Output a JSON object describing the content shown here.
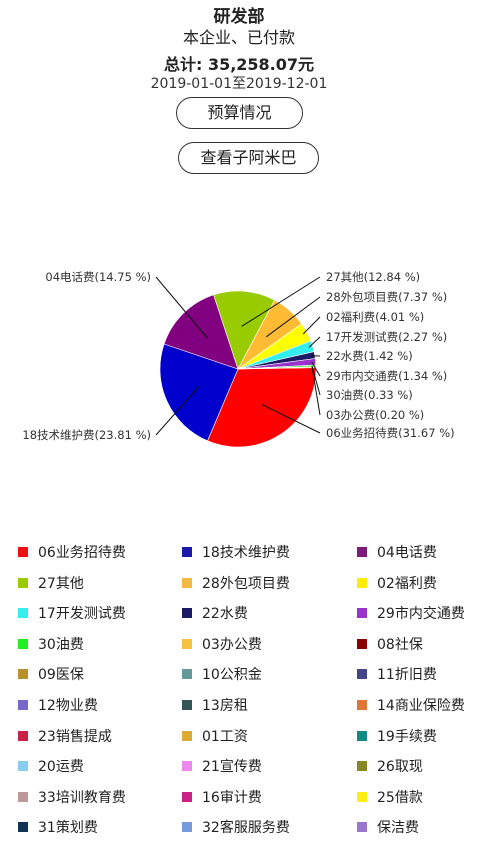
{
  "header": {
    "dept": "研发部",
    "scope": "本企业、已付款",
    "total": "总计: 35,258.07元",
    "range": "2019-01-01至2019-12-01"
  },
  "buttons": {
    "budget": "预算情况",
    "view_sub": "查看子阿米巴"
  },
  "chart_data": {
    "type": "pie",
    "slices": [
      {
        "name": "06业务招待费",
        "value": 31.67,
        "label": "06业务招待费(31.67 %)",
        "color": "#ff0000"
      },
      {
        "name": "18技术维护费",
        "value": 23.81,
        "label": "18技术维护费(23.81 %)",
        "color": "#0000cc"
      },
      {
        "name": "04电话费",
        "value": 14.75,
        "label": "04电话费(14.75 %)",
        "color": "#800080"
      },
      {
        "name": "27其他",
        "value": 12.84,
        "label": "27其他(12.84 %)",
        "color": "#99cc00"
      },
      {
        "name": "28外包项目费",
        "value": 7.37,
        "label": "28外包项目费(7.37 %)",
        "color": "#ffbb33"
      },
      {
        "name": "02福利费",
        "value": 4.01,
        "label": "02福利费(4.01 %)",
        "color": "#ffff00"
      },
      {
        "name": "17开发测试费",
        "value": 2.27,
        "label": "17开发测试费(2.27 %)",
        "color": "#33eeee"
      },
      {
        "name": "22水费",
        "value": 1.42,
        "label": "22水费(1.42 %)",
        "color": "#1a1a66"
      },
      {
        "name": "29市内交通费",
        "value": 1.34,
        "label": "29市内交通费(1.34 %)",
        "color": "#9933cc"
      },
      {
        "name": "30油费",
        "value": 0.33,
        "label": "30油费(0.33 %)",
        "color": "#22ee22"
      },
      {
        "name": "03办公费",
        "value": 0.2,
        "label": "03办公费(0.20 %)",
        "color": "#f5c242"
      }
    ]
  },
  "legend": [
    {
      "label": "06业务招待费",
      "color": "#ee1111"
    },
    {
      "label": "18技术维护费",
      "color": "#1a1aaa"
    },
    {
      "label": "04电话费",
      "color": "#7a1a7a"
    },
    {
      "label": "27其他",
      "color": "#99cc00"
    },
    {
      "label": "28外包项目费",
      "color": "#f5b942"
    },
    {
      "label": "02福利费",
      "color": "#ffee00"
    },
    {
      "label": "17开发测试费",
      "color": "#33eeee"
    },
    {
      "label": "22水费",
      "color": "#1a1a66"
    },
    {
      "label": "29市内交通费",
      "color": "#9933cc"
    },
    {
      "label": "30油费",
      "color": "#22ee22"
    },
    {
      "label": "03办公费",
      "color": "#f5c242"
    },
    {
      "label": "08社保",
      "color": "#880000"
    },
    {
      "label": "09医保",
      "color": "#b8912a"
    },
    {
      "label": "10公积金",
      "color": "#669999"
    },
    {
      "label": "11折旧费",
      "color": "#444488"
    },
    {
      "label": "12物业费",
      "color": "#7766cc"
    },
    {
      "label": "13房租",
      "color": "#335555"
    },
    {
      "label": "14商业保险费",
      "color": "#dd7733"
    },
    {
      "label": "23销售提成",
      "color": "#cc2244"
    },
    {
      "label": "01工资",
      "color": "#ddaa33"
    },
    {
      "label": "19手续费",
      "color": "#118888"
    },
    {
      "label": "20运费",
      "color": "#88ccee"
    },
    {
      "label": "21宣传费",
      "color": "#ee88ee"
    },
    {
      "label": "26取现",
      "color": "#888822"
    },
    {
      "label": "33培训教育费",
      "color": "#bb9999"
    },
    {
      "label": "16审计费",
      "color": "#cc2288"
    },
    {
      "label": "25借款",
      "color": "#ffee11"
    },
    {
      "label": "31策划费",
      "color": "#113355"
    },
    {
      "label": "32客服服务费",
      "color": "#7799dd"
    },
    {
      "label": "保洁费",
      "color": "#9977cc"
    }
  ]
}
